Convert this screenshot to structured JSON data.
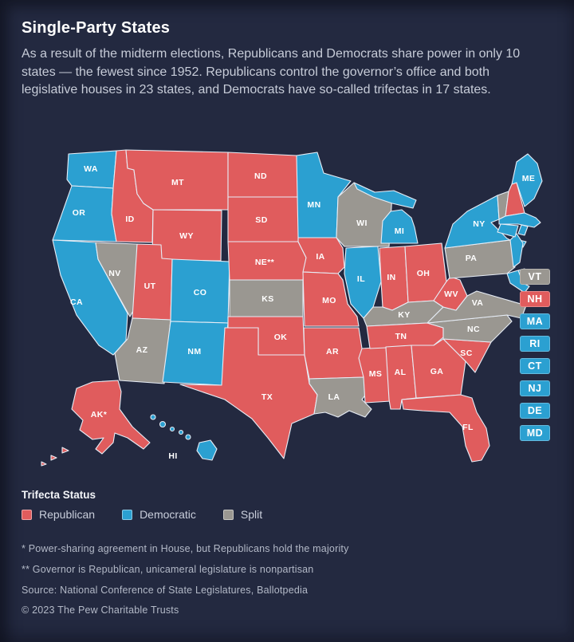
{
  "header": {
    "title": "Single-Party States",
    "subtitle": "As a result of the midterm elections, Republicans and Democrats share power in only 10 states — the fewest since 1952. Republicans control the governor’s office and both legislative houses in 23 states, and Democrats have so-called trifectas in 17 states."
  },
  "colors": {
    "republican": "#E05C5D",
    "democratic": "#2BA0D1",
    "split": "#9A9791",
    "card_background": "#232940",
    "state_border": "#E7EDF6",
    "label_text": "#FFFFFF"
  },
  "legend": {
    "title": "Trifecta Status",
    "items": [
      {
        "label": "Republican",
        "color_key": "republican"
      },
      {
        "label": "Democratic",
        "color_key": "democratic"
      },
      {
        "label": "Split",
        "color_key": "split"
      }
    ]
  },
  "notes": {
    "footnote1": "* Power-sharing agreement in House, but Republicans hold the majority",
    "footnote2": "** Governor is Republican, unicameral legislature is nonpartisan",
    "source": "Source: National Conference of State Legislatures, Ballotpedia",
    "copyright": "© 2023 The Pew Charitable Trusts"
  },
  "map": {
    "small_state_chips": [
      "VT",
      "NH",
      "MA",
      "RI",
      "CT",
      "NJ",
      "DE",
      "MD"
    ]
  },
  "chart_data": {
    "type": "choropleth-map",
    "title": "Single-Party States",
    "legend_position": "bottom-left",
    "categories": [
      "Republican",
      "Democratic",
      "Split"
    ],
    "counts": {
      "republican": 23,
      "democratic": 17,
      "split": 10
    },
    "states": [
      {
        "abbr": "WA",
        "party": "democratic",
        "map_label": "WA"
      },
      {
        "abbr": "OR",
        "party": "democratic",
        "map_label": "OR"
      },
      {
        "abbr": "CA",
        "party": "democratic",
        "map_label": "CA"
      },
      {
        "abbr": "NV",
        "party": "split",
        "map_label": "NV"
      },
      {
        "abbr": "ID",
        "party": "republican",
        "map_label": "ID"
      },
      {
        "abbr": "MT",
        "party": "republican",
        "map_label": "MT"
      },
      {
        "abbr": "WY",
        "party": "republican",
        "map_label": "WY"
      },
      {
        "abbr": "UT",
        "party": "republican",
        "map_label": "UT"
      },
      {
        "abbr": "CO",
        "party": "democratic",
        "map_label": "CO"
      },
      {
        "abbr": "AZ",
        "party": "split",
        "map_label": "AZ"
      },
      {
        "abbr": "NM",
        "party": "democratic",
        "map_label": "NM"
      },
      {
        "abbr": "ND",
        "party": "republican",
        "map_label": "ND"
      },
      {
        "abbr": "SD",
        "party": "republican",
        "map_label": "SD"
      },
      {
        "abbr": "NE",
        "party": "republican",
        "map_label": "NE**"
      },
      {
        "abbr": "KS",
        "party": "split",
        "map_label": "KS"
      },
      {
        "abbr": "OK",
        "party": "republican",
        "map_label": "OK"
      },
      {
        "abbr": "TX",
        "party": "republican",
        "map_label": "TX"
      },
      {
        "abbr": "MN",
        "party": "democratic",
        "map_label": "MN"
      },
      {
        "abbr": "IA",
        "party": "republican",
        "map_label": "IA"
      },
      {
        "abbr": "MO",
        "party": "republican",
        "map_label": "MO"
      },
      {
        "abbr": "AR",
        "party": "republican",
        "map_label": "AR"
      },
      {
        "abbr": "LA",
        "party": "split",
        "map_label": "LA"
      },
      {
        "abbr": "WI",
        "party": "split",
        "map_label": "WI"
      },
      {
        "abbr": "IL",
        "party": "democratic",
        "map_label": "IL"
      },
      {
        "abbr": "MS",
        "party": "republican",
        "map_label": "MS"
      },
      {
        "abbr": "MI",
        "party": "democratic",
        "map_label": "MI"
      },
      {
        "abbr": "IN",
        "party": "republican",
        "map_label": "IN"
      },
      {
        "abbr": "OH",
        "party": "republican",
        "map_label": "OH"
      },
      {
        "abbr": "KY",
        "party": "split",
        "map_label": "KY"
      },
      {
        "abbr": "TN",
        "party": "republican",
        "map_label": "TN"
      },
      {
        "abbr": "AL",
        "party": "republican",
        "map_label": "AL"
      },
      {
        "abbr": "GA",
        "party": "republican",
        "map_label": "GA"
      },
      {
        "abbr": "FL",
        "party": "republican",
        "map_label": "FL"
      },
      {
        "abbr": "SC",
        "party": "republican",
        "map_label": "SC"
      },
      {
        "abbr": "NC",
        "party": "split",
        "map_label": "NC"
      },
      {
        "abbr": "VA",
        "party": "split",
        "map_label": "VA"
      },
      {
        "abbr": "WV",
        "party": "republican",
        "map_label": "WV"
      },
      {
        "abbr": "PA",
        "party": "split",
        "map_label": "PA"
      },
      {
        "abbr": "NY",
        "party": "democratic",
        "map_label": "NY"
      },
      {
        "abbr": "ME",
        "party": "democratic",
        "map_label": "ME"
      },
      {
        "abbr": "VT",
        "party": "split",
        "map_label": ""
      },
      {
        "abbr": "NH",
        "party": "republican",
        "map_label": ""
      },
      {
        "abbr": "MA",
        "party": "democratic",
        "map_label": ""
      },
      {
        "abbr": "RI",
        "party": "democratic",
        "map_label": ""
      },
      {
        "abbr": "CT",
        "party": "democratic",
        "map_label": ""
      },
      {
        "abbr": "NJ",
        "party": "democratic",
        "map_label": ""
      },
      {
        "abbr": "DE",
        "party": "democratic",
        "map_label": ""
      },
      {
        "abbr": "MD",
        "party": "democratic",
        "map_label": ""
      },
      {
        "abbr": "AK",
        "party": "republican",
        "map_label": "AK*"
      },
      {
        "abbr": "HI",
        "party": "democratic",
        "map_label": "HI"
      }
    ]
  }
}
